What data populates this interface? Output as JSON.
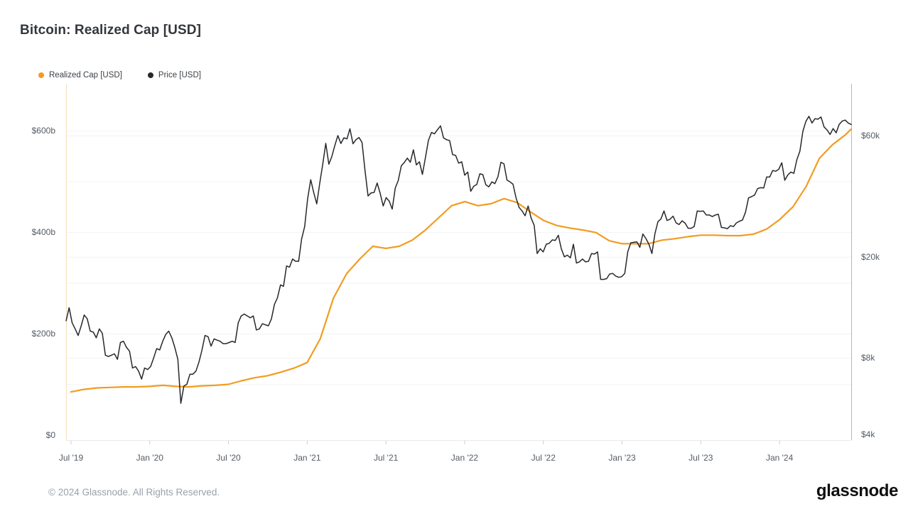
{
  "title": "Bitcoin: Realized Cap [USD]",
  "footer": {
    "copyright": "© 2024 Glassnode. All Rights Reserved.",
    "brand": "glassnode"
  },
  "chart_data": {
    "type": "line",
    "title": "Bitcoin: Realized Cap [USD]",
    "legend_position": "top-left",
    "grid": "horizontal-faint",
    "x_axis": {
      "start": "2019-06-20",
      "end": "2024-06-13",
      "ticks": [
        {
          "label": "Jul '19",
          "month_offset": 0
        },
        {
          "label": "Jan '20",
          "month_offset": 6
        },
        {
          "label": "Jul '20",
          "month_offset": 12
        },
        {
          "label": "Jan '21",
          "month_offset": 18
        },
        {
          "label": "Jul '21",
          "month_offset": 24
        },
        {
          "label": "Jan '22",
          "month_offset": 30
        },
        {
          "label": "Jul '22",
          "month_offset": 36
        },
        {
          "label": "Jan '23",
          "month_offset": 42
        },
        {
          "label": "Jul '23",
          "month_offset": 48
        },
        {
          "label": "Jan '24",
          "month_offset": 54
        }
      ]
    },
    "y_axis_left": {
      "unit": "USD billions",
      "scale": "linear",
      "range": [
        0,
        700
      ],
      "ticks": [
        {
          "label": "$600b",
          "value": 600
        },
        {
          "label": "$400b",
          "value": 400
        },
        {
          "label": "$200b",
          "value": 200
        },
        {
          "label": "$0",
          "value": 0
        }
      ],
      "grid_values": [
        100,
        200,
        300,
        400,
        500,
        600
      ]
    },
    "y_axis_right": {
      "unit": "USD thousands",
      "scale": "log",
      "range": [
        4,
        110
      ],
      "ticks": [
        {
          "label": "$60k",
          "value": 60
        },
        {
          "label": "$20k",
          "value": 20
        },
        {
          "label": "$8k",
          "value": 8
        },
        {
          "label": "$4k",
          "value": 4
        }
      ],
      "grid_values": [
        8,
        20,
        60
      ]
    },
    "series": [
      {
        "name": "Realized Cap [USD]",
        "color": "#f19c20",
        "axis": "left",
        "unit": "USD billions",
        "interval": "monthly",
        "start": "2019-07",
        "values": [
          85,
          90,
          93,
          94,
          95,
          95,
          96,
          98,
          96,
          95,
          97,
          98,
          100,
          107,
          113,
          117,
          124,
          132,
          143,
          190,
          270,
          318,
          347,
          372,
          368,
          372,
          384,
          404,
          428,
          452,
          460,
          452,
          456,
          466,
          458,
          440,
          423,
          413,
          408,
          404,
          399,
          383,
          377,
          377,
          377,
          384,
          387,
          391,
          394,
          394,
          393,
          393,
          396,
          406,
          425,
          450,
          490,
          545,
          572,
          592,
          603
        ]
      },
      {
        "name": "Price [USD]",
        "color": "#26282b",
        "axis": "right",
        "unit": "USD thousands",
        "interval": "weekly",
        "start": "2019-06-24",
        "values": [
          11.2,
          12.6,
          11.0,
          10.4,
          9.8,
          10.7,
          11.8,
          11.4,
          10.2,
          10.1,
          9.6,
          10.4,
          10.0,
          8.2,
          8.1,
          8.2,
          8.3,
          7.9,
          9.2,
          9.3,
          8.8,
          8.5,
          7.3,
          7.4,
          7.1,
          6.6,
          7.3,
          7.2,
          7.4,
          8.0,
          8.7,
          8.6,
          9.3,
          9.9,
          10.2,
          9.6,
          8.8,
          7.9,
          5.3,
          6.2,
          6.3,
          6.9,
          6.9,
          7.1,
          7.7,
          8.6,
          9.8,
          9.7,
          8.9,
          9.5,
          9.4,
          9.3,
          9.1,
          9.1,
          9.2,
          9.3,
          9.2,
          11.0,
          11.7,
          11.9,
          11.7,
          11.5,
          11.7,
          10.3,
          10.4,
          10.9,
          10.8,
          10.7,
          11.4,
          13.0,
          13.8,
          15.5,
          15.3,
          18.4,
          18.2,
          19.6,
          19.2,
          19.2,
          23.5,
          26.3,
          33.9,
          40.2,
          35.8,
          32.3,
          38.9,
          46.4,
          55.9,
          46.3,
          49.6,
          54.9,
          60.0,
          55.8,
          58.8,
          58.2,
          63.8,
          55.7,
          57.8,
          58.9,
          56.4,
          43.5,
          34.7,
          35.7,
          35.8,
          39.0,
          35.6,
          31.7,
          34.2,
          33.1,
          30.8,
          37.3,
          39.9,
          45.6,
          47.0,
          48.9,
          47.1,
          52.7,
          46.0,
          47.3,
          42.2,
          49.2,
          57.5,
          61.7,
          60.9,
          63.3,
          65.5,
          58.7,
          57.8,
          57.3,
          50.5,
          50.1,
          46.7,
          47.3,
          41.9,
          43.1,
          36.2,
          37.9,
          38.5,
          42.4,
          42.1,
          38.4,
          37.7,
          39.4,
          38.8,
          41.3,
          47.1,
          46.4,
          40.1,
          39.4,
          38.6,
          34.1,
          31.3,
          30.3,
          29.0,
          31.7,
          28.4,
          26.6,
          20.6,
          21.5,
          20.9,
          22.4,
          22.6,
          23.3,
          23.2,
          24.3,
          21.5,
          20.0,
          20.3,
          19.8,
          22.4,
          18.9,
          19.1,
          19.6,
          19.1,
          19.2,
          20.6,
          20.5,
          20.9,
          16.3,
          16.3,
          16.4,
          17.1,
          17.2,
          16.8,
          16.6,
          16.7,
          17.2,
          20.9,
          22.7,
          22.8,
          22.9,
          21.8,
          24.6,
          23.6,
          22.4,
          20.6,
          24.7,
          27.5,
          28.2,
          30.3,
          27.8,
          28.1,
          28.9,
          27.2,
          26.8,
          27.7,
          27.1,
          25.9,
          25.9,
          26.3,
          30.3,
          30.2,
          30.3,
          29.2,
          29.2,
          28.8,
          29.2,
          29.4,
          26.1,
          26.0,
          25.8,
          26.5,
          26.3,
          27.2,
          27.6,
          27.9,
          30.0,
          34.1,
          34.5,
          35.0,
          37.1,
          37.4,
          37.3,
          41.2,
          41.2,
          43.7,
          43.4,
          44.2,
          46.9,
          40.0,
          42.0,
          43.1,
          42.6,
          48.2,
          52.1,
          62.4,
          68.3,
          71.4,
          67.2,
          69.9,
          69.6,
          71.0,
          64.9,
          63.1,
          60.6,
          63.9,
          61.5,
          66.3,
          68.4,
          69.0,
          67.2,
          66.3
        ]
      }
    ]
  }
}
